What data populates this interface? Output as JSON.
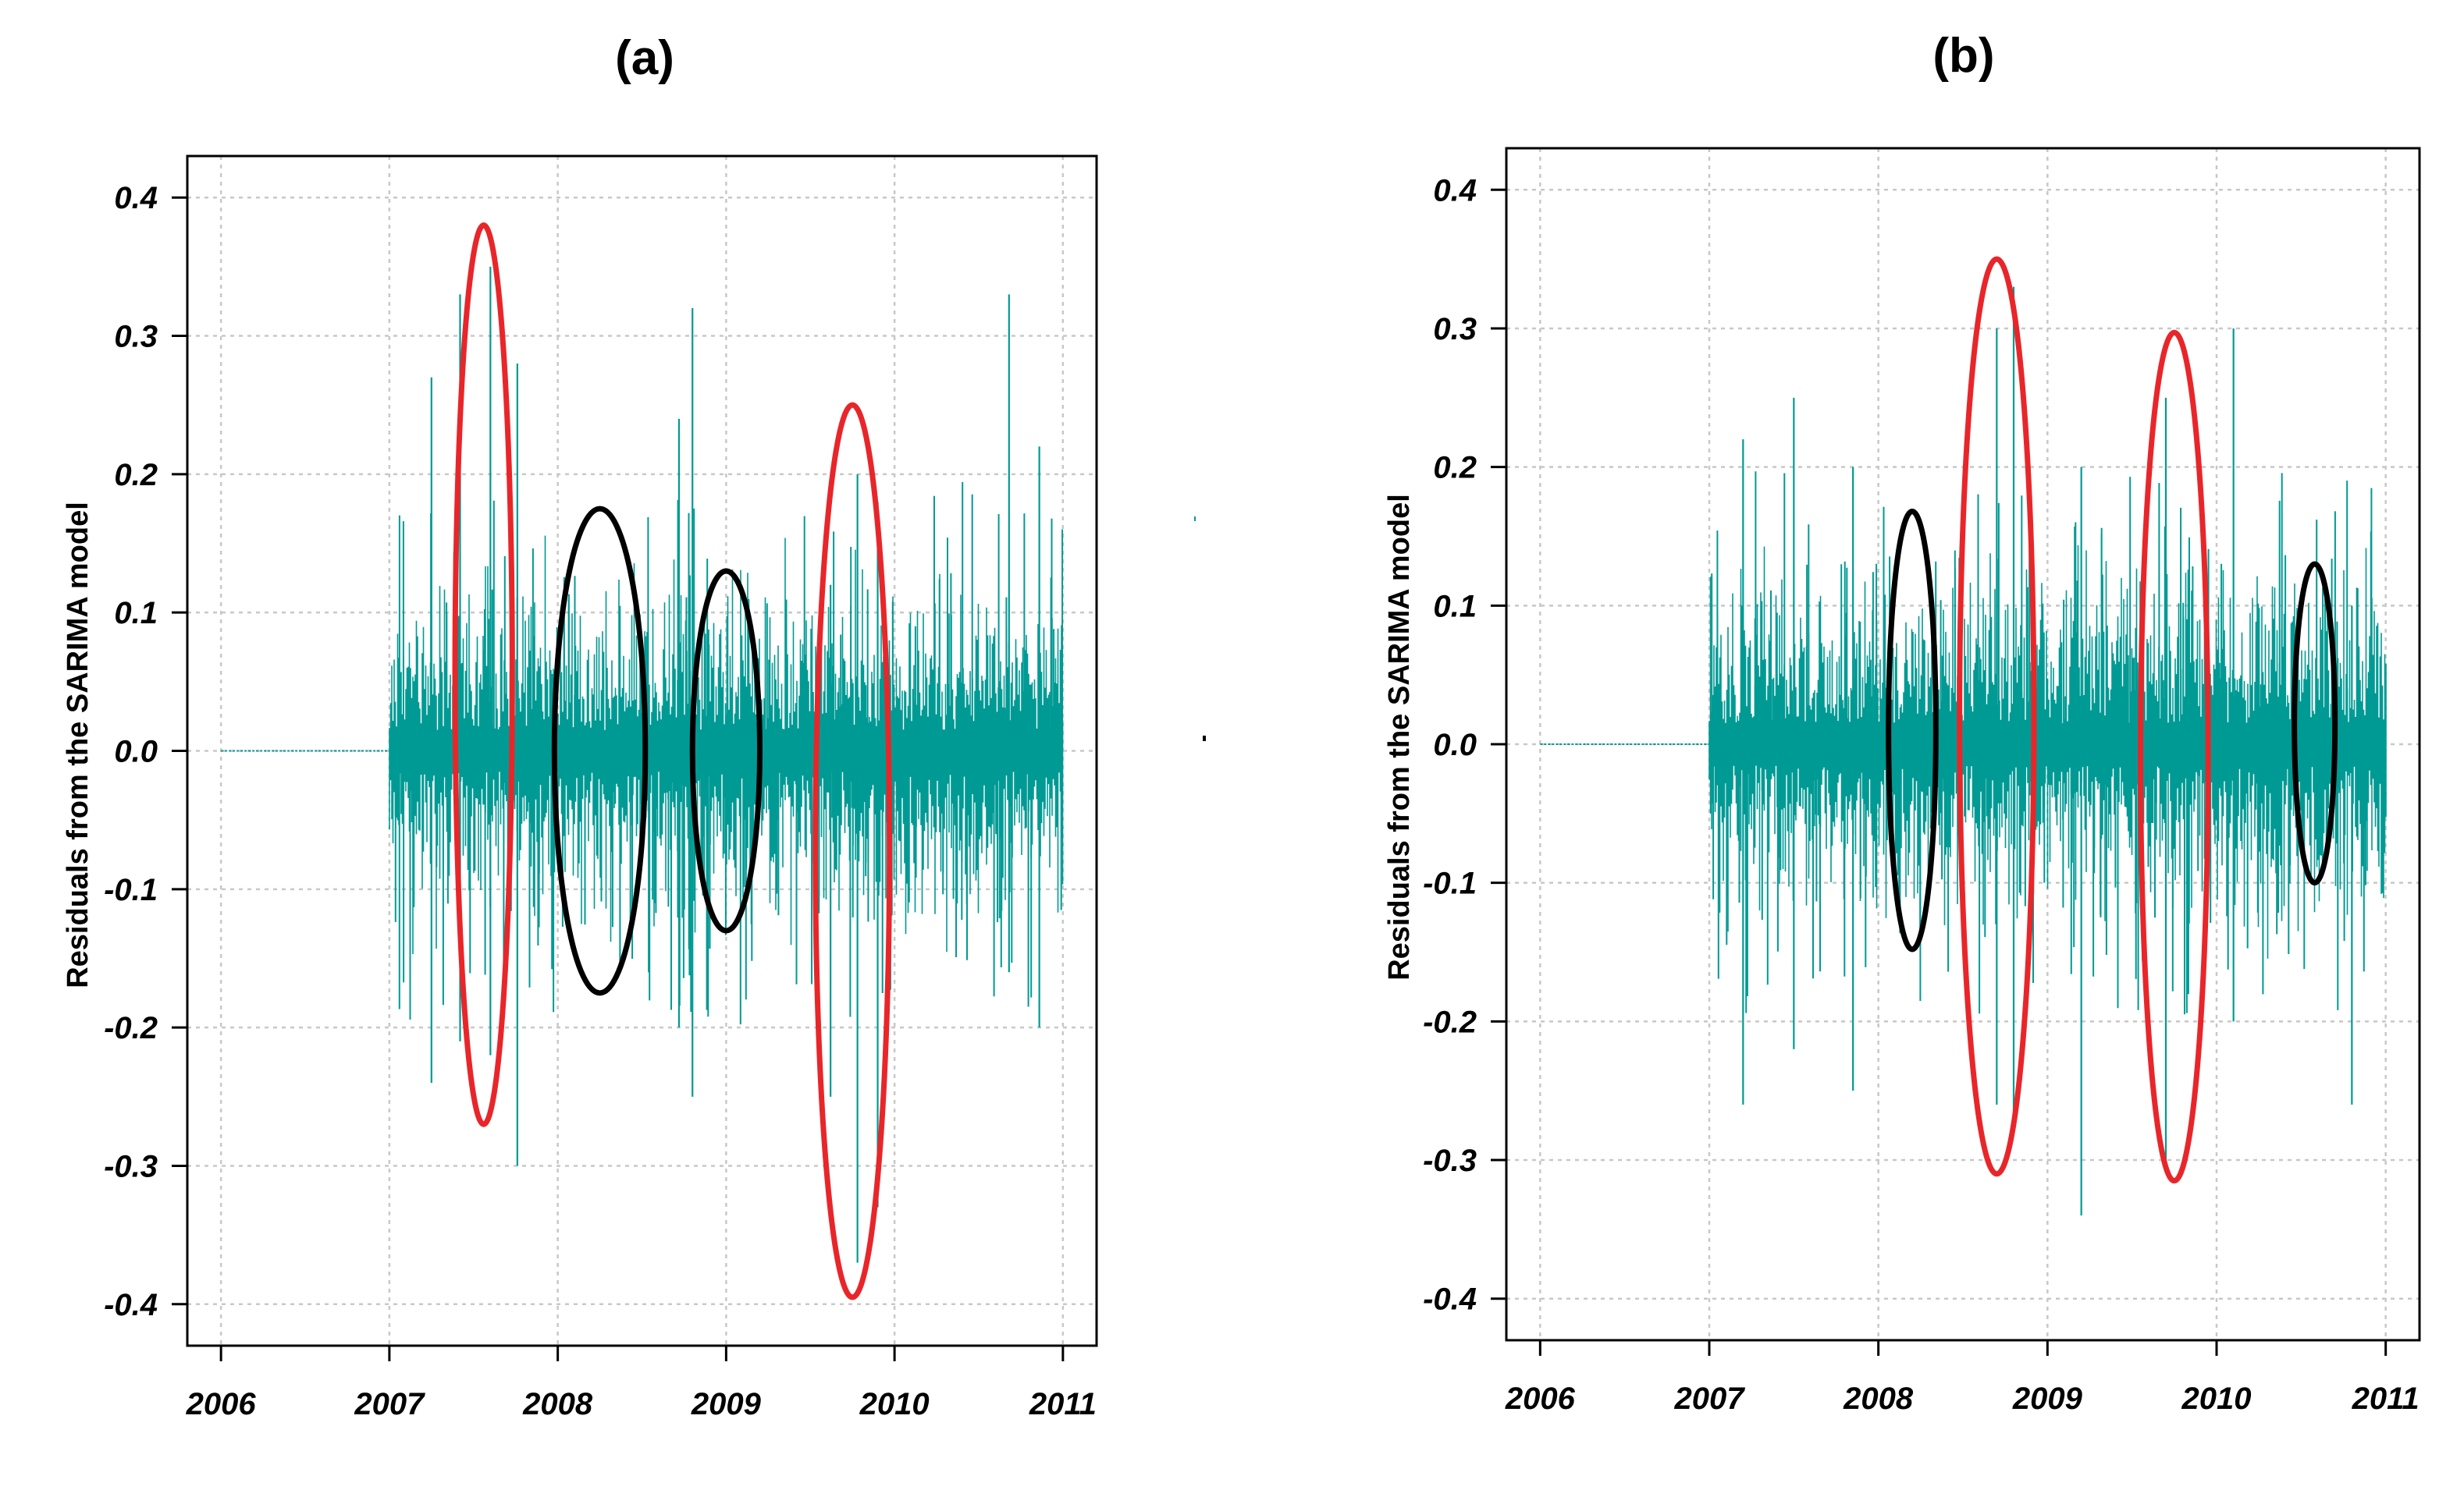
{
  "chart_data": [
    {
      "type": "line",
      "title": "(a)",
      "ylabel": "Residuals from the SARIMA model",
      "xlabel": "",
      "xlim": [
        2005.8,
        2011.2
      ],
      "ylim": [
        -0.43,
        0.43
      ],
      "x_ticks": [
        2006,
        2007,
        2008,
        2009,
        2010,
        2011
      ],
      "x_tick_labels": [
        "2006",
        "2007",
        "2008",
        "2009",
        "2010",
        "2011"
      ],
      "y_ticks": [
        0.4,
        0.3,
        0.2,
        0.1,
        0.0,
        -0.1,
        -0.2,
        -0.3,
        -0.4
      ],
      "y_tick_labels": [
        "0.4",
        "0.3",
        "0.2",
        "0.1",
        "0.0",
        "-0.1",
        "-0.2",
        "-0.3",
        "-0.4"
      ],
      "grid": true,
      "series": [
        {
          "name": "Residuals",
          "color": "#009a94",
          "flat_segment": [
            2006.0,
            2007.0
          ],
          "active_range": [
            2007.0,
            2011.0
          ],
          "spikes": [
            {
              "x": 2007.25,
              "min": -0.24,
              "max": 0.27
            },
            {
              "x": 2007.42,
              "min": -0.21,
              "max": 0.33
            },
            {
              "x": 2007.6,
              "min": -0.22,
              "max": 0.35
            },
            {
              "x": 2007.76,
              "min": -0.3,
              "max": 0.28
            },
            {
              "x": 2008.72,
              "min": -0.2,
              "max": 0.24
            },
            {
              "x": 2008.8,
              "min": -0.25,
              "max": 0.32
            },
            {
              "x": 2009.62,
              "min": -0.25,
              "max": 0.12
            },
            {
              "x": 2009.78,
              "min": -0.37,
              "max": 0.2
            },
            {
              "x": 2009.9,
              "min": -0.33,
              "max": 0.18
            },
            {
              "x": 2010.68,
              "min": -0.16,
              "max": 0.33
            },
            {
              "x": 2010.86,
              "min": -0.2,
              "max": 0.22
            }
          ]
        }
      ],
      "annotations": [
        {
          "shape": "ellipse",
          "color": "#e8262a",
          "x_center": 2007.56,
          "x_halfwidth": 0.17,
          "y_min": -0.27,
          "y_max": 0.38
        },
        {
          "shape": "ellipse",
          "color": "#000000",
          "x_center": 2008.25,
          "x_halfwidth": 0.27,
          "y_min": -0.175,
          "y_max": 0.175
        },
        {
          "shape": "ellipse",
          "color": "#000000",
          "x_center": 2009.0,
          "x_halfwidth": 0.2,
          "y_min": -0.13,
          "y_max": 0.13
        },
        {
          "shape": "ellipse",
          "color": "#e8262a",
          "x_center": 2009.75,
          "x_halfwidth": 0.22,
          "y_min": -0.395,
          "y_max": 0.25
        }
      ]
    },
    {
      "type": "line",
      "title": "(b)",
      "ylabel": "Residuals from the SARIMA model",
      "xlabel": "",
      "xlim": [
        2005.8,
        2011.2
      ],
      "ylim": [
        -0.43,
        0.43
      ],
      "x_ticks": [
        2006,
        2007,
        2008,
        2009,
        2010,
        2011
      ],
      "x_tick_labels": [
        "2006",
        "2007",
        "2008",
        "2009",
        "2010",
        "2011"
      ],
      "y_ticks": [
        0.4,
        0.3,
        0.2,
        0.1,
        0.0,
        -0.1,
        -0.2,
        -0.3,
        -0.4
      ],
      "y_tick_labels": [
        "0.4",
        "0.3",
        "0.2",
        "0.1",
        "0.0",
        "-0.1",
        "-0.2",
        "-0.3",
        "-0.4"
      ],
      "grid": true,
      "series": [
        {
          "name": "Residuals",
          "color": "#009a94",
          "flat_segment": [
            2006.0,
            2007.0
          ],
          "active_range": [
            2007.0,
            2011.0
          ],
          "spikes": [
            {
              "x": 2007.2,
              "min": -0.26,
              "max": 0.22
            },
            {
              "x": 2007.5,
              "min": -0.22,
              "max": 0.25
            },
            {
              "x": 2007.85,
              "min": -0.25,
              "max": 0.2
            },
            {
              "x": 2008.7,
              "min": -0.26,
              "max": 0.3
            },
            {
              "x": 2008.8,
              "min": -0.28,
              "max": 0.33
            },
            {
              "x": 2009.2,
              "min": -0.34,
              "max": 0.2
            },
            {
              "x": 2009.7,
              "min": -0.3,
              "max": 0.25
            },
            {
              "x": 2010.1,
              "min": -0.2,
              "max": 0.3
            },
            {
              "x": 2010.8,
              "min": -0.26,
              "max": 0.1
            }
          ]
        }
      ],
      "annotations": [
        {
          "shape": "ellipse",
          "color": "#000000",
          "x_center": 2008.2,
          "x_halfwidth": 0.14,
          "y_min": -0.148,
          "y_max": 0.168
        },
        {
          "shape": "ellipse",
          "color": "#e8262a",
          "x_center": 2008.7,
          "x_halfwidth": 0.22,
          "y_min": -0.31,
          "y_max": 0.35
        },
        {
          "shape": "ellipse",
          "color": "#e8262a",
          "x_center": 2009.75,
          "x_halfwidth": 0.2,
          "y_min": -0.315,
          "y_max": 0.297
        },
        {
          "shape": "ellipse",
          "color": "#000000",
          "x_center": 2010.58,
          "x_halfwidth": 0.12,
          "y_min": -0.1,
          "y_max": 0.13
        }
      ]
    }
  ]
}
